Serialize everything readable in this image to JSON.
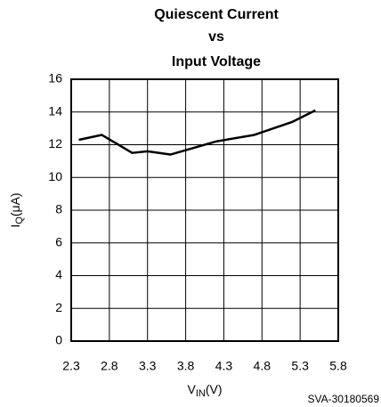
{
  "chart_data": {
    "type": "line",
    "title": [
      "Quiescent Current",
      "vs",
      "Input Voltage"
    ],
    "y_label": {
      "main": "I",
      "sub": "Q",
      "unit": "(μA)"
    },
    "x_label": {
      "main": "V",
      "sub": "IN",
      "unit": "(V)"
    },
    "footnote": "SVA-30180569",
    "x": [
      2.4,
      2.7,
      3.1,
      3.3,
      3.6,
      4.2,
      4.7,
      5.2,
      5.5
    ],
    "series": [
      {
        "color": "#000000",
        "values": [
          12.3,
          12.6,
          11.5,
          11.6,
          11.4,
          12.2,
          12.6,
          13.4,
          14.1
        ]
      }
    ],
    "xlim": [
      2.3,
      5.8
    ],
    "xticks": [
      2.3,
      2.8,
      3.3,
      3.8,
      4.3,
      4.8,
      5.3,
      5.8
    ],
    "ylim": [
      0,
      16
    ],
    "yticks": [
      0,
      2,
      4,
      6,
      8,
      10,
      12,
      14,
      16
    ],
    "grid": true
  }
}
